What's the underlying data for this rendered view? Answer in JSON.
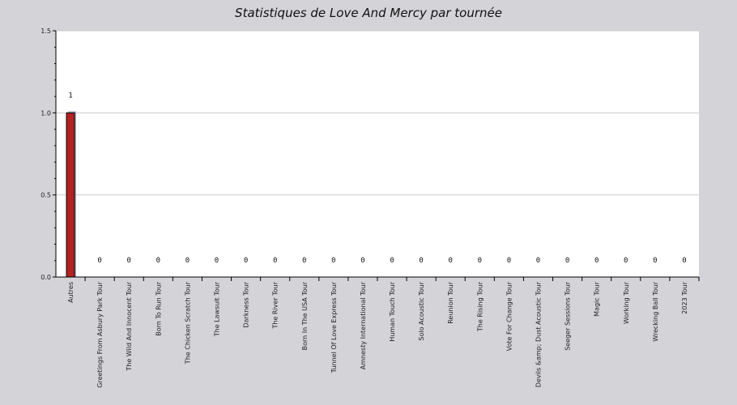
{
  "chart_data": {
    "type": "bar",
    "title": "Statistiques de Love And Mercy par tournée",
    "xlabel": "",
    "ylabel": "",
    "ylim": [
      0,
      1.5
    ],
    "yticks": [
      "0.0",
      "0.5",
      "1.0",
      "1.5"
    ],
    "grid": true,
    "categories": [
      "Autres",
      "Greetings From Asbury Park Tour",
      "The Wild And Innocent Tour",
      "Born To Run Tour",
      "The Chicken Scratch Tour",
      "The Lawsuit Tour",
      "Darkness Tour",
      "The River Tour",
      "Born In The USA Tour",
      "Tunnel Of Love Express Tour",
      "Amnesty International Tour",
      "Human Touch Tour",
      "Solo Acoustic Tour",
      "Reunion Tour",
      "The Rising Tour",
      "Vote For Change Tour",
      "Devils &amp; Dust Acoustic Tour",
      "Seeger Sessions Tour",
      "Magic Tour",
      "Working Tour",
      "Wrecking Ball Tour",
      "2023 Tour"
    ],
    "values": [
      1,
      0,
      0,
      0,
      0,
      0,
      0,
      0,
      0,
      0,
      0,
      0,
      0,
      0,
      0,
      0,
      0,
      0,
      0,
      0,
      0,
      0
    ],
    "value_labels": [
      "1",
      "0",
      "0",
      "0",
      "0",
      "0",
      "0",
      "0",
      "0",
      "0",
      "0",
      "0",
      "0",
      "0",
      "0",
      "0",
      "0",
      "0",
      "0",
      "0",
      "0",
      "0"
    ],
    "colors": {
      "background": "#d4d3d8",
      "plot_area": "#ffffff",
      "bar_fill": "#b22222",
      "bar_stroke": "#000000",
      "bar_shadow": "#a9afc3",
      "grid": "#cccccc",
      "axis": "#000000"
    }
  }
}
